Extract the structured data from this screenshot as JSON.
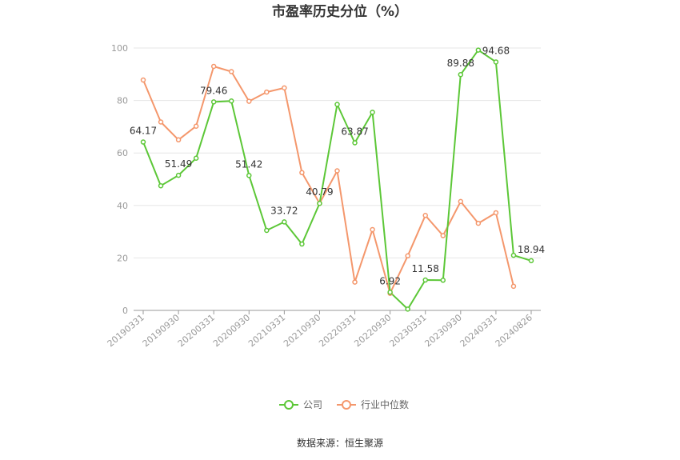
{
  "chart_data": {
    "type": "line",
    "title": "市盈率历史分位（%）",
    "xlabel": "",
    "ylabel": "",
    "ylim": [
      0,
      100
    ],
    "yticks": [
      0,
      20,
      40,
      60,
      80,
      100
    ],
    "grid": true,
    "legend_position": "bottom-center",
    "x": [
      "20190331",
      "20190630",
      "20190930",
      "20191231",
      "20200331",
      "20200630",
      "20200930",
      "20201231",
      "20210331",
      "20210630",
      "20210930",
      "20211231",
      "20220331",
      "20220630",
      "20220930",
      "20221231",
      "20230331",
      "20230630",
      "20230930",
      "20231231",
      "20240331",
      "20240630",
      "20240826"
    ],
    "x_tick_labels": [
      "20190331",
      "20190930",
      "20200331",
      "20200930",
      "20210331",
      "20210930",
      "20220331",
      "20220930",
      "20230331",
      "20230930",
      "20240331",
      "20240826"
    ],
    "series": [
      {
        "name": "公司",
        "color": "#5cc737",
        "values": [
          64.17,
          47.5,
          51.49,
          58.0,
          79.46,
          79.8,
          51.42,
          30.5,
          33.72,
          25.3,
          40.79,
          78.5,
          63.87,
          75.5,
          6.92,
          0.5,
          11.58,
          11.5,
          89.88,
          99.2,
          94.68,
          21.0,
          18.94
        ],
        "labels": {
          "0": "64.17",
          "2": "51.49",
          "4": "79.46",
          "6": "51.42",
          "8": "33.72",
          "10": "40.79",
          "12": "63.87",
          "14": "6.92",
          "16": "11.58",
          "18": "89.88",
          "20": "94.68",
          "22": "18.94"
        }
      },
      {
        "name": "行业中位数",
        "color": "#f4976c",
        "values": [
          87.8,
          71.8,
          65.0,
          70.2,
          93.0,
          91.0,
          79.7,
          83.2,
          84.8,
          52.5,
          40.8,
          53.2,
          10.8,
          30.8,
          6.5,
          20.8,
          36.2,
          28.5,
          41.5,
          33.2,
          37.2,
          9.2,
          null
        ]
      }
    ],
    "source": "数据来源：恒生聚源"
  }
}
